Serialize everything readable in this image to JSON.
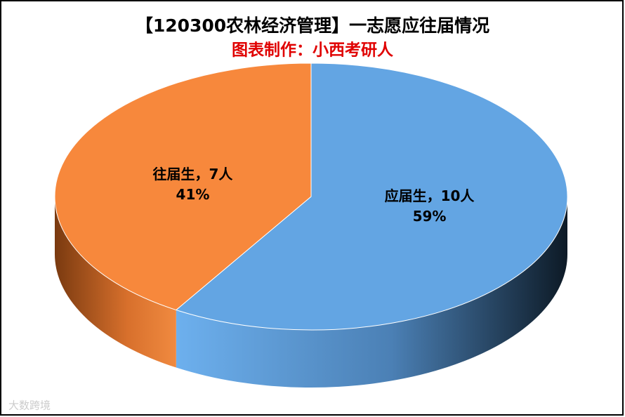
{
  "chart_data": {
    "type": "pie3d",
    "title": "【120300农林经济管理】一志愿应往届情况",
    "subtitle": "图表制作：小西考研人",
    "categories": [
      "应届生",
      "往届生"
    ],
    "values": [
      10,
      7
    ],
    "value_labels": [
      "应届生，10人",
      "往届生，7人"
    ],
    "percentages": [
      59,
      41
    ],
    "percent_labels": [
      "59%",
      "41%"
    ],
    "colors": [
      "#63a5e3",
      "#f7883c"
    ],
    "watermark": "大数跨境"
  }
}
